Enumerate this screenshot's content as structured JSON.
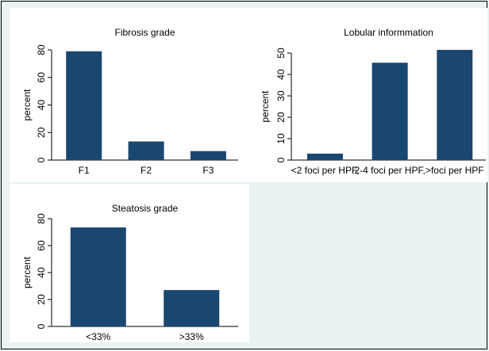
{
  "colors": {
    "background": "#eaf2f3",
    "panel": "#ffffff",
    "bar": "#1a476f",
    "axis": "#000000"
  },
  "chart_data": [
    {
      "type": "bar",
      "title": "Fibrosis grade",
      "ylabel": "percent",
      "categories": [
        "F1",
        "F2",
        "F3"
      ],
      "values": [
        79,
        13.5,
        6.5
      ],
      "ylim": [
        0,
        80
      ],
      "yticks": [
        0,
        20,
        40,
        60,
        80
      ],
      "ytick_labels": [
        "0",
        "20",
        "40",
        "60",
        "80"
      ],
      "grid": false
    },
    {
      "type": "bar",
      "title": "Lobular informmation",
      "ylabel": "percent",
      "categories": [
        "<2 foci per HPF,",
        "2-4 foci per HPF,",
        ">foci per HPF"
      ],
      "values": [
        3,
        45.5,
        51.5
      ],
      "ylim": [
        0,
        50
      ],
      "yticks": [
        0,
        10,
        20,
        30,
        40,
        50
      ],
      "ytick_labels": [
        "0",
        "10",
        "20",
        "30",
        "40",
        "50"
      ],
      "grid": false
    },
    {
      "type": "bar",
      "title": "Steatosis grade",
      "ylabel": "percent",
      "categories": [
        "<33%",
        ">33%"
      ],
      "values": [
        73.5,
        27
      ],
      "ylim": [
        0,
        80
      ],
      "yticks": [
        0,
        20,
        40,
        60,
        80
      ],
      "ytick_labels": [
        "0",
        "20",
        "40",
        "60",
        "80"
      ],
      "grid": false
    }
  ]
}
